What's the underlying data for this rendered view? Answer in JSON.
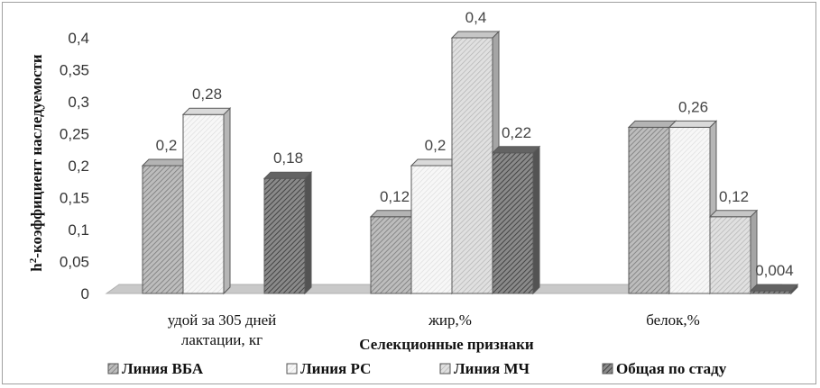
{
  "chart_data": {
    "type": "bar",
    "style": "3d-clustered-column",
    "title": "",
    "xlabel": "Селекционные признаки",
    "ylabel": "h²-коэффициент наследуемости",
    "ylabel_main": "h",
    "ylabel_sup": "2",
    "ylabel_rest": "-коэффициент наследуемости",
    "ylim": [
      0,
      0.4
    ],
    "yticks": [
      "0",
      "0,05",
      "0,1",
      "0,15",
      "0,2",
      "0,25",
      "0,3",
      "0,35",
      "0,4"
    ],
    "yticks_values": [
      0,
      0.05,
      0.1,
      0.15,
      0.2,
      0.25,
      0.3,
      0.35,
      0.4
    ],
    "categories": [
      [
        "удой за 305 дней",
        "лактации, кг"
      ],
      [
        "жир,%"
      ],
      [
        "белок,%"
      ]
    ],
    "series": [
      {
        "name": "Линия ВБА",
        "values": [
          0.2,
          0.12,
          0.26
        ],
        "labels": [
          "0,2",
          "0,12",
          ""
        ],
        "color": "#c8c8c8",
        "pattern": "diag-dense"
      },
      {
        "name": "Линия РС",
        "values": [
          0.28,
          0.2,
          0.26
        ],
        "labels": [
          "0,28",
          "0,2",
          "0,26"
        ],
        "color": "#f2f2f2",
        "pattern": "diag-light"
      },
      {
        "name": "Линия МЧ",
        "values": [
          null,
          0.4,
          0.12
        ],
        "labels": [
          "",
          "0,4",
          "0,12"
        ],
        "color": "#dcdcdc",
        "pattern": "diag-mid"
      },
      {
        "name": "Общая по стаду",
        "values": [
          0.18,
          0.22,
          0.004
        ],
        "labels": [
          "0,18",
          "0,22",
          "0,004"
        ],
        "color": "#6e6e6e",
        "pattern": "diag-dark"
      }
    ],
    "legend_position": "bottom",
    "grid": false
  }
}
